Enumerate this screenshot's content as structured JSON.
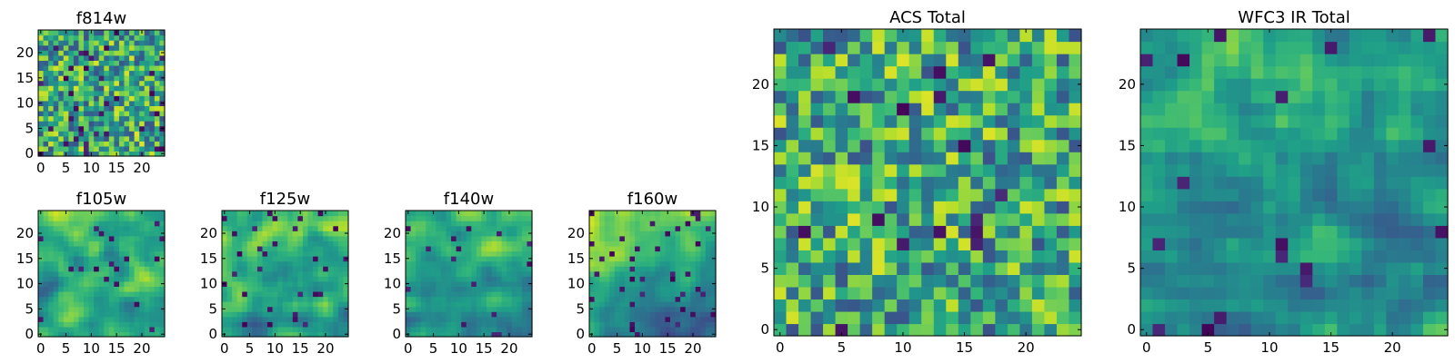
{
  "chart_data": [
    {
      "type": "heatmap",
      "title": "f814w",
      "grid_size": 25,
      "seed": 814,
      "smooth": 0,
      "deep_fraction": 0.05,
      "gradient": 0,
      "x_ticks": [
        "0",
        "5",
        "10",
        "15",
        "20"
      ],
      "y_ticks": [
        "0",
        "5",
        "10",
        "15",
        "20"
      ],
      "x_tick_values": [
        0,
        5,
        10,
        15,
        20
      ],
      "y_tick_values": [
        0,
        5,
        10,
        15,
        20
      ],
      "xlim": [
        0,
        25
      ],
      "ylim": [
        0,
        25
      ],
      "colormap": "viridis"
    },
    {
      "type": "heatmap",
      "title": "f105w",
      "grid_size": 25,
      "seed": 105,
      "smooth": 2,
      "deep_fraction": 0.03,
      "gradient": 0.15,
      "x_ticks": [
        "0",
        "5",
        "10",
        "15",
        "20"
      ],
      "y_ticks": [
        "0",
        "5",
        "10",
        "15",
        "20"
      ],
      "x_tick_values": [
        0,
        5,
        10,
        15,
        20
      ],
      "y_tick_values": [
        0,
        5,
        10,
        15,
        20
      ],
      "xlim": [
        0,
        25
      ],
      "ylim": [
        0,
        25
      ],
      "colormap": "viridis"
    },
    {
      "type": "heatmap",
      "title": "f125w",
      "grid_size": 25,
      "seed": 125,
      "smooth": 2,
      "deep_fraction": 0.04,
      "gradient": 0.2,
      "x_ticks": [
        "0",
        "5",
        "10",
        "15",
        "20"
      ],
      "y_ticks": [
        "0",
        "5",
        "10",
        "15",
        "20"
      ],
      "x_tick_values": [
        0,
        5,
        10,
        15,
        20
      ],
      "y_tick_values": [
        0,
        5,
        10,
        15,
        20
      ],
      "xlim": [
        0,
        25
      ],
      "ylim": [
        0,
        25
      ],
      "colormap": "viridis"
    },
    {
      "type": "heatmap",
      "title": "f140w",
      "grid_size": 25,
      "seed": 140,
      "smooth": 2,
      "deep_fraction": 0.02,
      "gradient": 0.3,
      "x_ticks": [
        "0",
        "5",
        "10",
        "15",
        "20"
      ],
      "y_ticks": [
        "0",
        "5",
        "10",
        "15",
        "20"
      ],
      "x_tick_values": [
        0,
        5,
        10,
        15,
        20
      ],
      "y_tick_values": [
        0,
        5,
        10,
        15,
        20
      ],
      "xlim": [
        0,
        25
      ],
      "ylim": [
        0,
        25
      ],
      "colormap": "viridis"
    },
    {
      "type": "heatmap",
      "title": "f160w",
      "grid_size": 25,
      "seed": 160,
      "smooth": 2,
      "deep_fraction": 0.06,
      "gradient": 0.55,
      "x_ticks": [
        "0",
        "5",
        "10",
        "15",
        "20"
      ],
      "y_ticks": [
        "0",
        "5",
        "10",
        "15",
        "20"
      ],
      "x_tick_values": [
        0,
        5,
        10,
        15,
        20
      ],
      "y_tick_values": [
        0,
        5,
        10,
        15,
        20
      ],
      "xlim": [
        0,
        25
      ],
      "ylim": [
        0,
        25
      ],
      "colormap": "viridis"
    },
    {
      "type": "heatmap",
      "title": "ACS Total",
      "grid_size": 25,
      "seed": 901,
      "smooth": 0,
      "deep_fraction": 0.04,
      "gradient": 0,
      "x_ticks": [
        "0",
        "5",
        "10",
        "15",
        "20"
      ],
      "y_ticks": [
        "0",
        "5",
        "10",
        "15",
        "20"
      ],
      "x_tick_values": [
        0,
        5,
        10,
        15,
        20
      ],
      "y_tick_values": [
        0,
        5,
        10,
        15,
        20
      ],
      "xlim": [
        0,
        25
      ],
      "ylim": [
        0,
        25
      ],
      "colormap": "viridis"
    },
    {
      "type": "heatmap",
      "title": "WFC3 IR Total",
      "grid_size": 25,
      "seed": 902,
      "smooth": 1,
      "deep_fraction": 0.03,
      "gradient": 0.2,
      "x_ticks": [
        "0",
        "5",
        "10",
        "15",
        "20"
      ],
      "y_ticks": [
        "0",
        "5",
        "10",
        "15",
        "20"
      ],
      "x_tick_values": [
        0,
        5,
        10,
        15,
        20
      ],
      "y_tick_values": [
        0,
        5,
        10,
        15,
        20
      ],
      "xlim": [
        0,
        25
      ],
      "ylim": [
        0,
        25
      ],
      "colormap": "viridis"
    }
  ]
}
